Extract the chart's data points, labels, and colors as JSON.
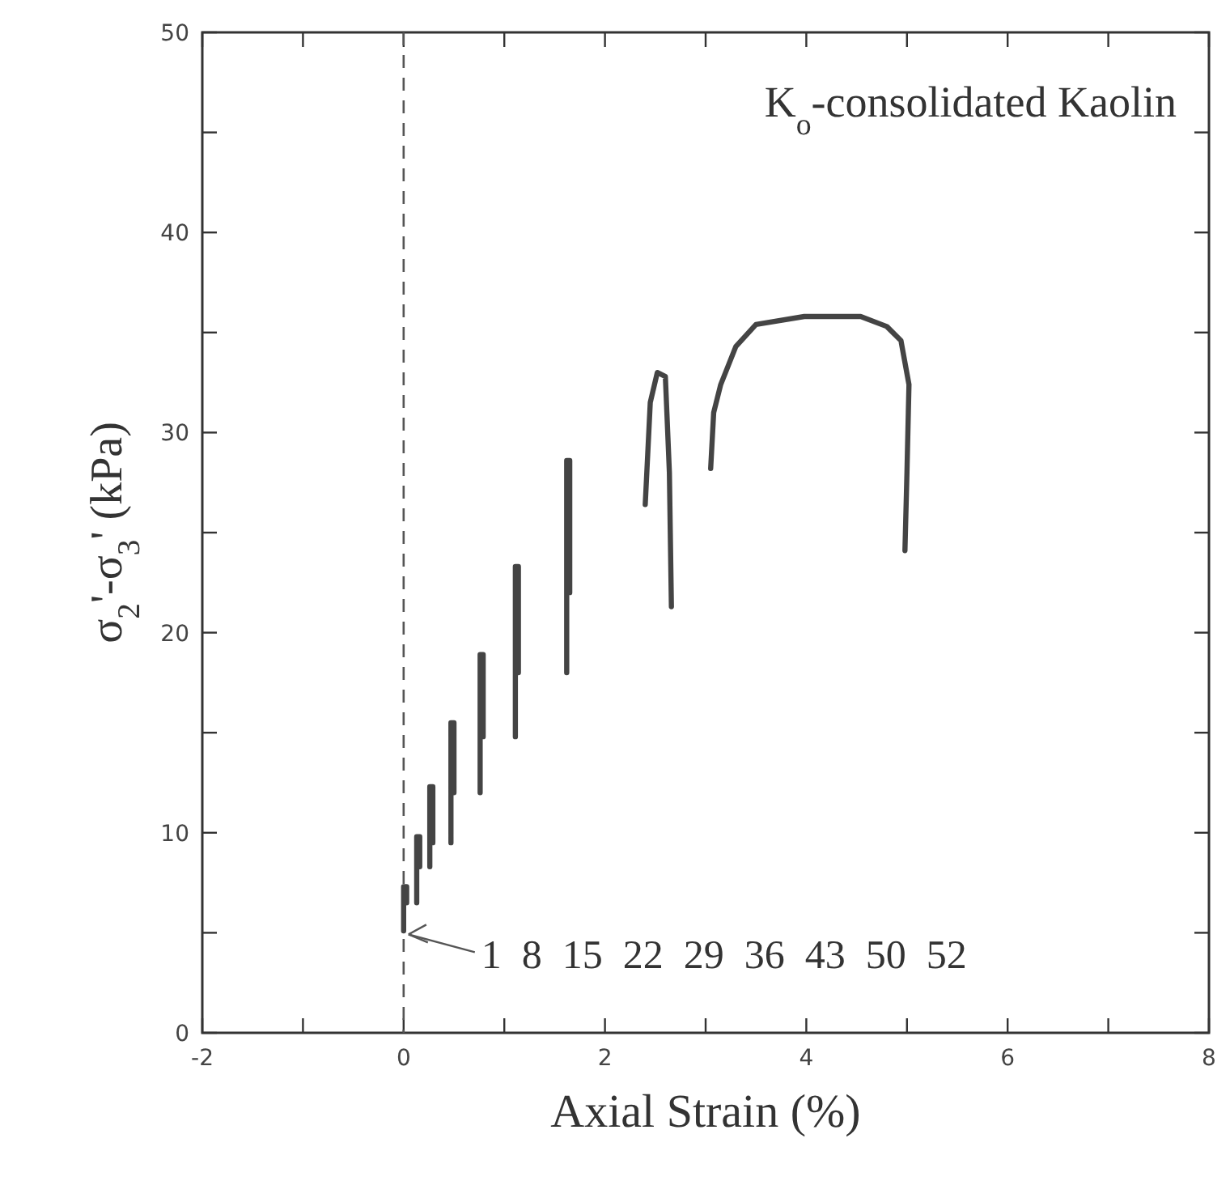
{
  "chart_data": {
    "type": "line",
    "title": "K$_{o}$-consolidated Kaolin",
    "xlabel": "Axial Strain (%)",
    "ylabel": "σ$_{2}$'-σ$_{3}$' (kPa)",
    "xlim": [
      -2,
      8
    ],
    "xticks": [
      -2,
      {
        "value": -1,
        "label": null
      },
      0,
      {
        "value": 1,
        "label": null
      },
      2,
      {
        "value": 3,
        "label": null
      },
      4,
      {
        "value": 5,
        "label": null
      },
      6,
      {
        "value": 7,
        "label": null
      },
      8
    ],
    "ylim": [
      0,
      50
    ],
    "yticks": [
      0,
      {
        "value": 5,
        "label": null
      },
      10,
      {
        "value": 15,
        "label": null
      },
      20,
      {
        "value": 25,
        "label": null
      },
      30,
      {
        "value": 35,
        "label": null
      },
      40,
      {
        "value": 45,
        "label": null
      },
      50
    ],
    "grid": false,
    "marker": "none",
    "line_style": "solid",
    "ref_lines": [
      {
        "axis": "x",
        "value": 0,
        "line_style": "dashed",
        "color": "#555555"
      }
    ],
    "annotations": [
      {
        "text": "1 8 15 22 29 36 43 50 52",
        "x": 0,
        "y": 5
      }
    ],
    "series": [
      {
        "color": "#444444",
        "x": [
          0,
          0,
          0.03,
          0.03,
          null,
          0.13,
          0.13,
          0.16,
          0.16,
          null,
          0.26,
          0.26,
          0.29,
          0.29,
          null,
          0.47,
          0.47,
          0.5,
          0.5,
          null,
          0.76,
          0.76,
          0.79,
          0.79,
          null,
          1.11,
          1.11,
          1.14,
          1.14,
          null,
          1.62,
          1.62,
          1.65,
          1.65,
          null,
          2.4,
          2.45,
          2.52,
          2.6,
          2.64,
          2.66,
          null,
          3.05,
          3.08,
          3.15,
          3.3,
          3.5,
          3.98,
          4.54,
          4.8,
          4.94,
          5.02,
          5.0,
          4.98
        ],
        "values": [
          5.1,
          7.3,
          7.3,
          6.5,
          null,
          6.5,
          9.8,
          9.8,
          8.3,
          null,
          8.3,
          12.3,
          12.3,
          9.5,
          null,
          9.5,
          15.5,
          15.5,
          12.0,
          null,
          12.0,
          18.9,
          18.9,
          14.8,
          null,
          14.8,
          23.3,
          23.3,
          18.0,
          null,
          18.0,
          28.6,
          28.6,
          22.0,
          null,
          26.4,
          31.5,
          33.0,
          32.8,
          28,
          21.3,
          null,
          28.2,
          31,
          32.4,
          34.3,
          35.4,
          35.8,
          35.8,
          35.3,
          34.6,
          32.4,
          28,
          24.1
        ]
      }
    ]
  }
}
